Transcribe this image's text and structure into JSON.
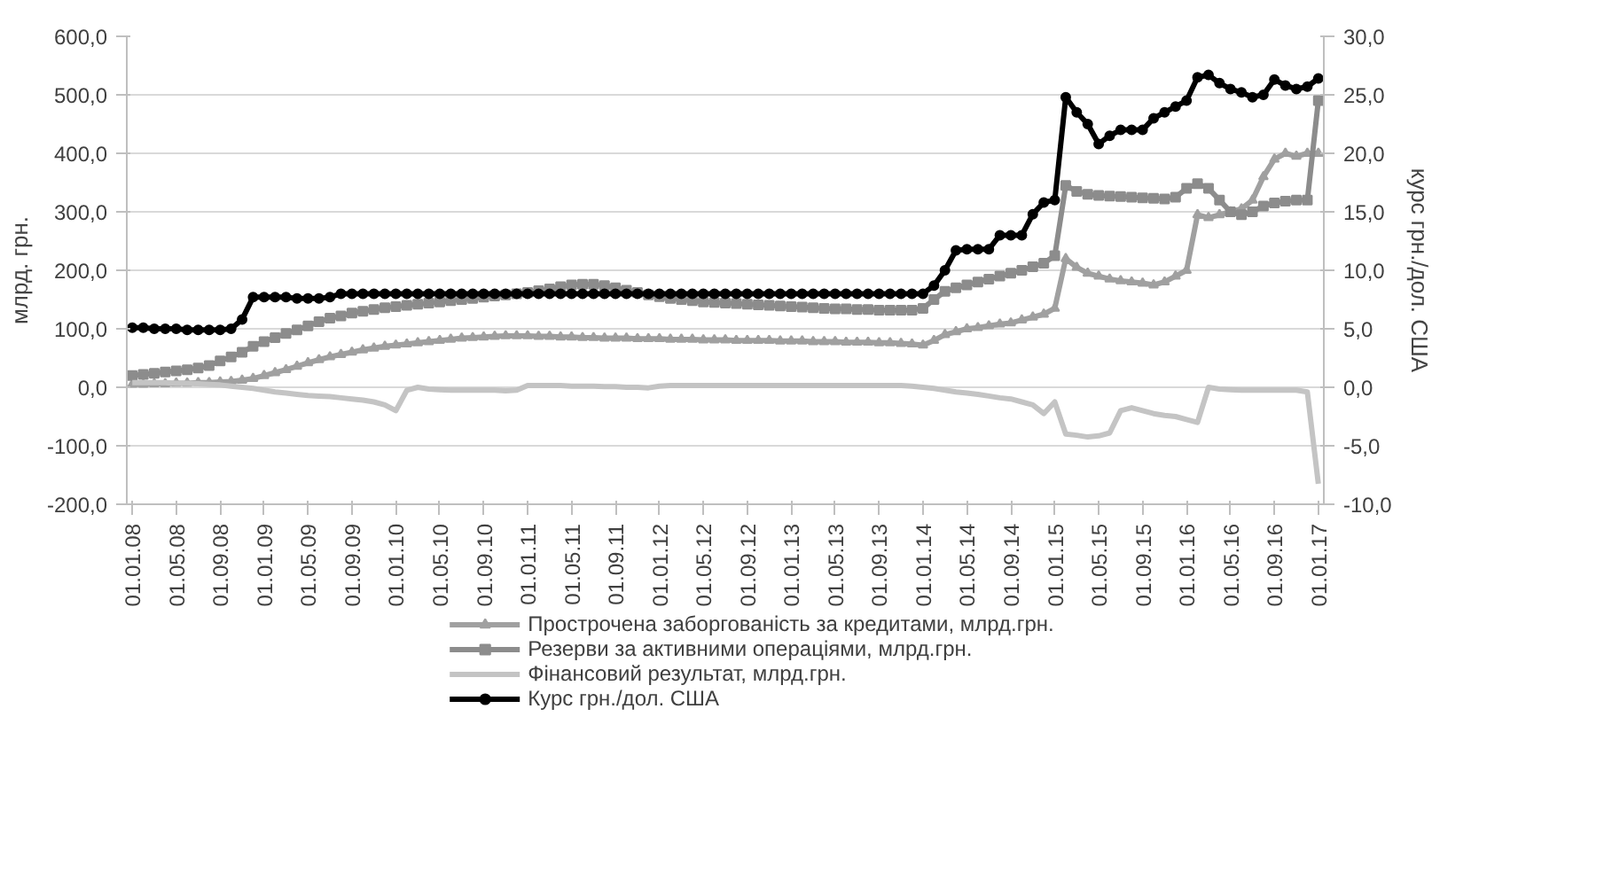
{
  "chart_data": {
    "type": "line",
    "categories": [
      "01.01.08",
      null,
      null,
      null,
      "01.05.08",
      null,
      null,
      null,
      "01.09.08",
      null,
      null,
      null,
      "01.01.09",
      null,
      null,
      null,
      "01.05.09",
      null,
      null,
      null,
      "01.09.09",
      null,
      null,
      null,
      "01.01.10",
      null,
      null,
      null,
      "01.05.10",
      null,
      null,
      null,
      "01.09.10",
      null,
      null,
      null,
      "01.01.11",
      null,
      null,
      null,
      "01.05.11",
      null,
      null,
      null,
      "01.09.11",
      null,
      null,
      null,
      "01.01.12",
      null,
      null,
      null,
      "01.05.12",
      null,
      null,
      null,
      "01.09.12",
      null,
      null,
      null,
      "01.01.13",
      null,
      null,
      null,
      "01.05.13",
      null,
      null,
      null,
      "01.09.13",
      null,
      null,
      null,
      "01.01.14",
      null,
      null,
      null,
      "01.05.14",
      null,
      null,
      null,
      "01.09.14",
      null,
      null,
      null,
      "01.01.15",
      null,
      null,
      null,
      "01.05.15",
      null,
      null,
      null,
      "01.09.15",
      null,
      null,
      null,
      "01.01.16",
      null,
      null,
      null,
      "01.05.16",
      null,
      null,
      null,
      "01.09.16",
      null,
      null,
      null,
      "01.01.17"
    ],
    "ylabel": "млрд. грн.",
    "y2label": "курс грн./дол. США",
    "ylim": [
      -200,
      600
    ],
    "yticks": [
      {
        "value": -200,
        "label": "-200,0"
      },
      {
        "value": -100,
        "label": "-100,0"
      },
      {
        "value": 0,
        "label": "0,0"
      },
      {
        "value": 100,
        "label": "100,0"
      },
      {
        "value": 200,
        "label": "200,0"
      },
      {
        "value": 300,
        "label": "300,0"
      },
      {
        "value": 400,
        "label": "400,0"
      },
      {
        "value": 500,
        "label": "500,0"
      },
      {
        "value": 600,
        "label": "600,0"
      }
    ],
    "y2lim": [
      -10,
      30
    ],
    "y2ticks": [
      {
        "value": -10,
        "label": "-10,0"
      },
      {
        "value": -5,
        "label": "-5,0"
      },
      {
        "value": 0,
        "label": "0,0"
      },
      {
        "value": 5,
        "label": "5,0"
      },
      {
        "value": 10,
        "label": "10,0"
      },
      {
        "value": 15,
        "label": "15,0"
      },
      {
        "value": 20,
        "label": "20,0"
      },
      {
        "value": 25,
        "label": "25,0"
      },
      {
        "value": 30,
        "label": "30,0"
      }
    ],
    "grid": "y",
    "legend": "bottom",
    "series": [
      {
        "name": "Прострочена заборгованість за кредитами, млрд.грн.",
        "color": "#a0a0a0",
        "marker": "triangle",
        "values": [
          5,
          5,
          6,
          6,
          7,
          7,
          8,
          8,
          9,
          10,
          12,
          15,
          20,
          25,
          30,
          36,
          42,
          47,
          52,
          56,
          60,
          64,
          67,
          70,
          72,
          74,
          76,
          78,
          80,
          82,
          84,
          85,
          86,
          87,
          88,
          88,
          88,
          87,
          87,
          86,
          86,
          85,
          85,
          84,
          84,
          84,
          83,
          83,
          83,
          82,
          82,
          82,
          81,
          81,
          81,
          80,
          80,
          80,
          80,
          79,
          79,
          79,
          78,
          78,
          78,
          77,
          77,
          77,
          76,
          76,
          75,
          74,
          72,
          80,
          90,
          95,
          100,
          102,
          105,
          108,
          110,
          115,
          120,
          125,
          135,
          220,
          205,
          195,
          190,
          185,
          182,
          180,
          178,
          175,
          180,
          190,
          200,
          295,
          290,
          295,
          300,
          305,
          320,
          360,
          390,
          400,
          395,
          400,
          400
        ]
      },
      {
        "name": "Резерви за активними операціями, млрд.грн.",
        "color": "#8c8c8c",
        "marker": "square",
        "values": [
          20,
          22,
          24,
          26,
          28,
          30,
          33,
          37,
          45,
          52,
          60,
          70,
          78,
          85,
          92,
          98,
          105,
          112,
          118,
          122,
          127,
          130,
          133,
          136,
          138,
          140,
          142,
          144,
          146,
          148,
          150,
          152,
          154,
          156,
          158,
          160,
          162,
          165,
          168,
          172,
          175,
          176,
          176,
          174,
          170,
          166,
          162,
          158,
          155,
          152,
          150,
          148,
          146,
          145,
          144,
          143,
          142,
          141,
          140,
          139,
          138,
          137,
          136,
          135,
          134,
          134,
          133,
          133,
          132,
          132,
          132,
          132,
          135,
          150,
          164,
          170,
          175,
          180,
          185,
          190,
          195,
          200,
          206,
          212,
          225,
          345,
          335,
          330,
          328,
          327,
          326,
          325,
          324,
          323,
          322,
          325,
          340,
          348,
          340,
          320,
          300,
          295,
          300,
          310,
          315,
          318,
          320,
          320,
          490
        ]
      },
      {
        "name": "Фінансовий результат, млрд.грн.",
        "color": "#c4c4c4",
        "marker": "none",
        "values": [
          8,
          8,
          8,
          8,
          7,
          7,
          6,
          5,
          4,
          2,
          0,
          -2,
          -5,
          -8,
          -10,
          -12,
          -14,
          -15,
          -16,
          -18,
          -20,
          -22,
          -25,
          -30,
          -40,
          -5,
          0,
          -3,
          -4,
          -5,
          -5,
          -5,
          -5,
          -5,
          -6,
          -5,
          3,
          3,
          3,
          3,
          2,
          2,
          2,
          1,
          1,
          0,
          0,
          -1,
          2,
          3,
          3,
          3,
          3,
          3,
          3,
          3,
          3,
          3,
          3,
          3,
          3,
          3,
          3,
          3,
          3,
          3,
          3,
          3,
          3,
          3,
          3,
          2,
          0,
          -2,
          -5,
          -8,
          -10,
          -12,
          -15,
          -18,
          -20,
          -25,
          -30,
          -45,
          -25,
          -80,
          -82,
          -85,
          -83,
          -78,
          -40,
          -35,
          -40,
          -45,
          -48,
          -50,
          -55,
          -60,
          0,
          -3,
          -4,
          -5,
          -5,
          -5,
          -5,
          -5,
          -5,
          -8,
          -165
        ]
      },
      {
        "name": "Курс грн./дол. США",
        "color": "#000000",
        "marker": "circle",
        "axis": "y2",
        "values": [
          5.1,
          5.1,
          5.0,
          5.0,
          5.0,
          4.9,
          4.9,
          4.9,
          4.9,
          5.0,
          5.8,
          7.7,
          7.7,
          7.7,
          7.7,
          7.6,
          7.6,
          7.6,
          7.7,
          8.0,
          8.0,
          8.0,
          8.0,
          8.0,
          8.0,
          8.0,
          8.0,
          8.0,
          8.0,
          8.0,
          8.0,
          8.0,
          8.0,
          8.0,
          8.0,
          8.0,
          8.0,
          8.0,
          8.0,
          8.0,
          8.0,
          8.0,
          8.0,
          8.0,
          8.0,
          8.0,
          8.0,
          8.0,
          8.0,
          8.0,
          8.0,
          8.0,
          8.0,
          8.0,
          8.0,
          8.0,
          8.0,
          8.0,
          8.0,
          8.0,
          8.0,
          8.0,
          8.0,
          8.0,
          8.0,
          8.0,
          8.0,
          8.0,
          8.0,
          8.0,
          8.0,
          8.0,
          8.0,
          8.7,
          10.0,
          11.7,
          11.8,
          11.8,
          11.8,
          13.0,
          13.0,
          13.0,
          14.8,
          15.8,
          16.0,
          24.8,
          23.5,
          22.5,
          20.8,
          21.5,
          22.0,
          22.0,
          22.0,
          23.0,
          23.5,
          24.0,
          24.5,
          26.5,
          26.7,
          26.0,
          25.5,
          25.2,
          24.8,
          25.0,
          26.3,
          25.8,
          25.5,
          25.7,
          26.4
        ]
      }
    ]
  }
}
